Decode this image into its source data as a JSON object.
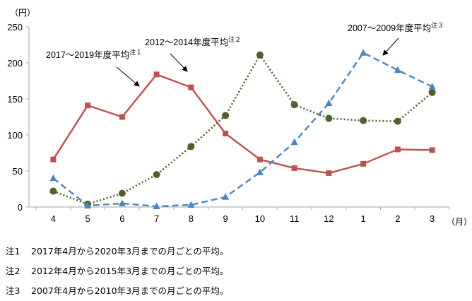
{
  "chart_data": {
    "type": "line",
    "ylabel": "（円）",
    "xlabel": "（月）",
    "ylim": [
      0,
      250
    ],
    "yticks": [
      0,
      50,
      100,
      150,
      200,
      250
    ],
    "categories": [
      "4",
      "5",
      "6",
      "7",
      "8",
      "9",
      "10",
      "11",
      "12",
      "1",
      "2",
      "3"
    ],
    "series": [
      {
        "name": "2017～2019年度平均",
        "note_mark": "注１",
        "color": "#c0504d",
        "style": "solid",
        "marker": "square",
        "values": [
          66,
          141,
          125,
          184,
          166,
          102,
          66,
          54,
          47,
          60,
          80,
          79
        ]
      },
      {
        "name": "2012～2014年度平均",
        "note_mark": "注２",
        "color": "#4f6228",
        "style": "dotted",
        "marker": "circle",
        "values": [
          22,
          4,
          19,
          45,
          84,
          127,
          211,
          142,
          123,
          120,
          119,
          159
        ]
      },
      {
        "name": "2007～2009年度平均",
        "note_mark": "注３",
        "color": "#4a86c5",
        "style": "dashed",
        "marker": "triangle",
        "values": [
          40,
          2,
          5,
          1,
          3,
          14,
          48,
          90,
          144,
          214,
          190,
          167
        ]
      }
    ]
  },
  "notes": [
    {
      "label": "注1",
      "text": "2017年4月から2020年3月までの月ごとの平均。"
    },
    {
      "label": "注2",
      "text": "2012年4月から2015年3月までの月ごとの平均。"
    },
    {
      "label": "注3",
      "text": "2007年4月から2010年3月までの月ごとの平均。"
    }
  ]
}
